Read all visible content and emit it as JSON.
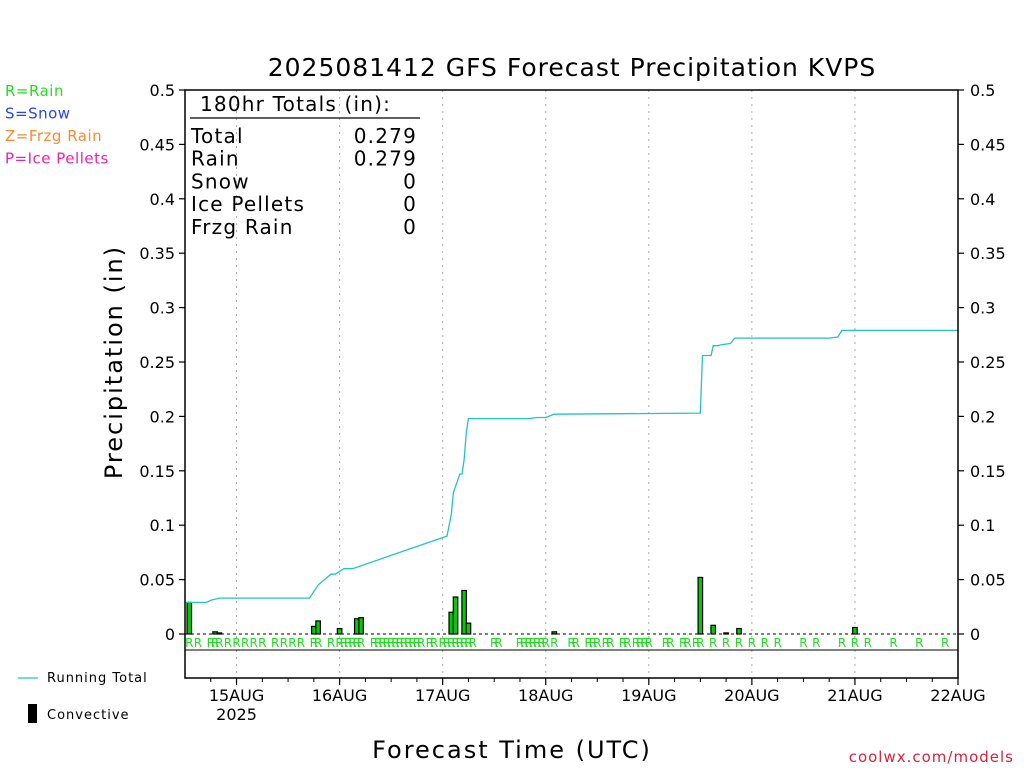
{
  "title": "2025081412 GFS Forecast Precipitation KVPS",
  "ylabel": "Precipitation (in)",
  "xlabel": "Forecast Time (UTC)",
  "credit": "coolwx.com/models",
  "legend_types": [
    {
      "text": "R=Rain",
      "color": "#22dd22"
    },
    {
      "text": "S=Snow",
      "color": "#2244ff"
    },
    {
      "text": "Z=Frzg Rain",
      "color": "#ff8833"
    },
    {
      "text": "P=Ice Pellets",
      "color": "#ee22aa"
    }
  ],
  "legend_bottom": {
    "running_total": "Running Total",
    "convective": "Convective"
  },
  "totals": {
    "heading": "180hr Totals (in):",
    "rows": [
      {
        "label": "Total",
        "value": "0.279"
      },
      {
        "label": "Rain",
        "value": "0.279"
      },
      {
        "label": "Snow",
        "value": "0"
      },
      {
        "label": "Ice Pellets",
        "value": "0"
      },
      {
        "label": "Frzg Rain",
        "value": "0"
      }
    ]
  },
  "colors": {
    "running_total": "#22c4c4",
    "bar_fill": "#00cc00",
    "bar_edge": "#000000",
    "rain_marker": "#22dd22",
    "grid": "#aaaaaa",
    "credit": "#e0213a"
  },
  "chart_data": {
    "type": "bar",
    "title": "2025081412 GFS Forecast Precipitation KVPS",
    "xlabel": "Forecast Time (UTC)",
    "ylabel": "Precipitation (in)",
    "xunit": "forecast hour",
    "xlim": [
      0,
      180
    ],
    "ylim": [
      0,
      0.5
    ],
    "yticks": [
      0,
      0.05,
      0.1,
      0.15,
      0.2,
      0.25,
      0.3,
      0.35,
      0.4,
      0.45,
      0.5
    ],
    "ytick_labels": [
      "0",
      "0.05",
      "0.1",
      "0.15",
      "0.2",
      "0.25",
      "0.3",
      "0.35",
      "0.4",
      "0.45",
      "0.5"
    ],
    "xticks": [
      {
        "hour": 12,
        "label": "15AUG",
        "sublabel": "2025"
      },
      {
        "hour": 36,
        "label": "16AUG"
      },
      {
        "hour": 60,
        "label": "17AUG"
      },
      {
        "hour": 84,
        "label": "18AUG"
      },
      {
        "hour": 108,
        "label": "19AUG"
      },
      {
        "hour": 132,
        "label": "20AUG"
      },
      {
        "hour": 156,
        "label": "21AUG"
      },
      {
        "hour": 180,
        "label": "22AUG"
      }
    ],
    "grid": true,
    "series": [
      {
        "name": "Running Total",
        "kind": "line",
        "x": [
          0,
          1,
          5,
          6,
          8,
          29,
          31,
          34,
          35,
          37,
          39,
          61,
          62,
          62.5,
          64,
          64.5,
          65,
          65.5,
          66,
          80,
          82,
          84,
          86,
          120,
          120.5,
          122.5,
          123,
          124,
          125,
          127,
          128,
          150,
          152,
          153,
          180
        ],
        "y": [
          0.029,
          0.029,
          0.029,
          0.031,
          0.033,
          0.033,
          0.045,
          0.055,
          0.055,
          0.06,
          0.06,
          0.09,
          0.11,
          0.13,
          0.147,
          0.147,
          0.16,
          0.185,
          0.198,
          0.198,
          0.199,
          0.199,
          0.202,
          0.203,
          0.256,
          0.256,
          0.265,
          0.265,
          0.266,
          0.267,
          0.272,
          0.272,
          0.273,
          0.279,
          0.279
        ]
      },
      {
        "name": "Convective",
        "kind": "bar",
        "x": [
          1,
          7,
          8,
          30,
          31,
          36,
          40,
          41,
          62,
          63,
          65,
          66,
          86,
          120,
          123,
          126,
          129,
          156
        ],
        "y": [
          0.029,
          0.002,
          0.001,
          0.007,
          0.012,
          0.005,
          0.014,
          0.015,
          0.02,
          0.034,
          0.04,
          0.01,
          0.002,
          0.052,
          0.008,
          0.001,
          0.005,
          0.006
        ]
      }
    ],
    "precip_type_markers": {
      "label": "R",
      "hours": [
        1,
        3,
        6,
        7,
        8,
        10,
        12,
        14,
        16,
        18,
        21,
        23,
        25,
        27,
        30,
        31,
        34,
        36,
        37,
        38,
        39,
        40,
        41,
        44,
        45,
        46,
        47,
        48,
        49,
        50,
        51,
        52,
        53,
        54,
        55,
        57,
        58,
        60,
        61,
        62,
        63,
        64,
        65,
        66,
        67,
        72,
        73,
        78,
        79,
        80,
        81,
        82,
        83,
        84,
        86,
        90,
        91,
        94,
        95,
        96,
        98,
        99,
        102,
        103,
        105,
        106,
        107,
        108,
        112,
        113,
        116,
        117,
        119,
        120,
        123,
        126,
        129,
        132,
        135,
        138,
        144,
        147,
        153,
        156,
        159,
        165,
        171,
        177
      ]
    }
  }
}
